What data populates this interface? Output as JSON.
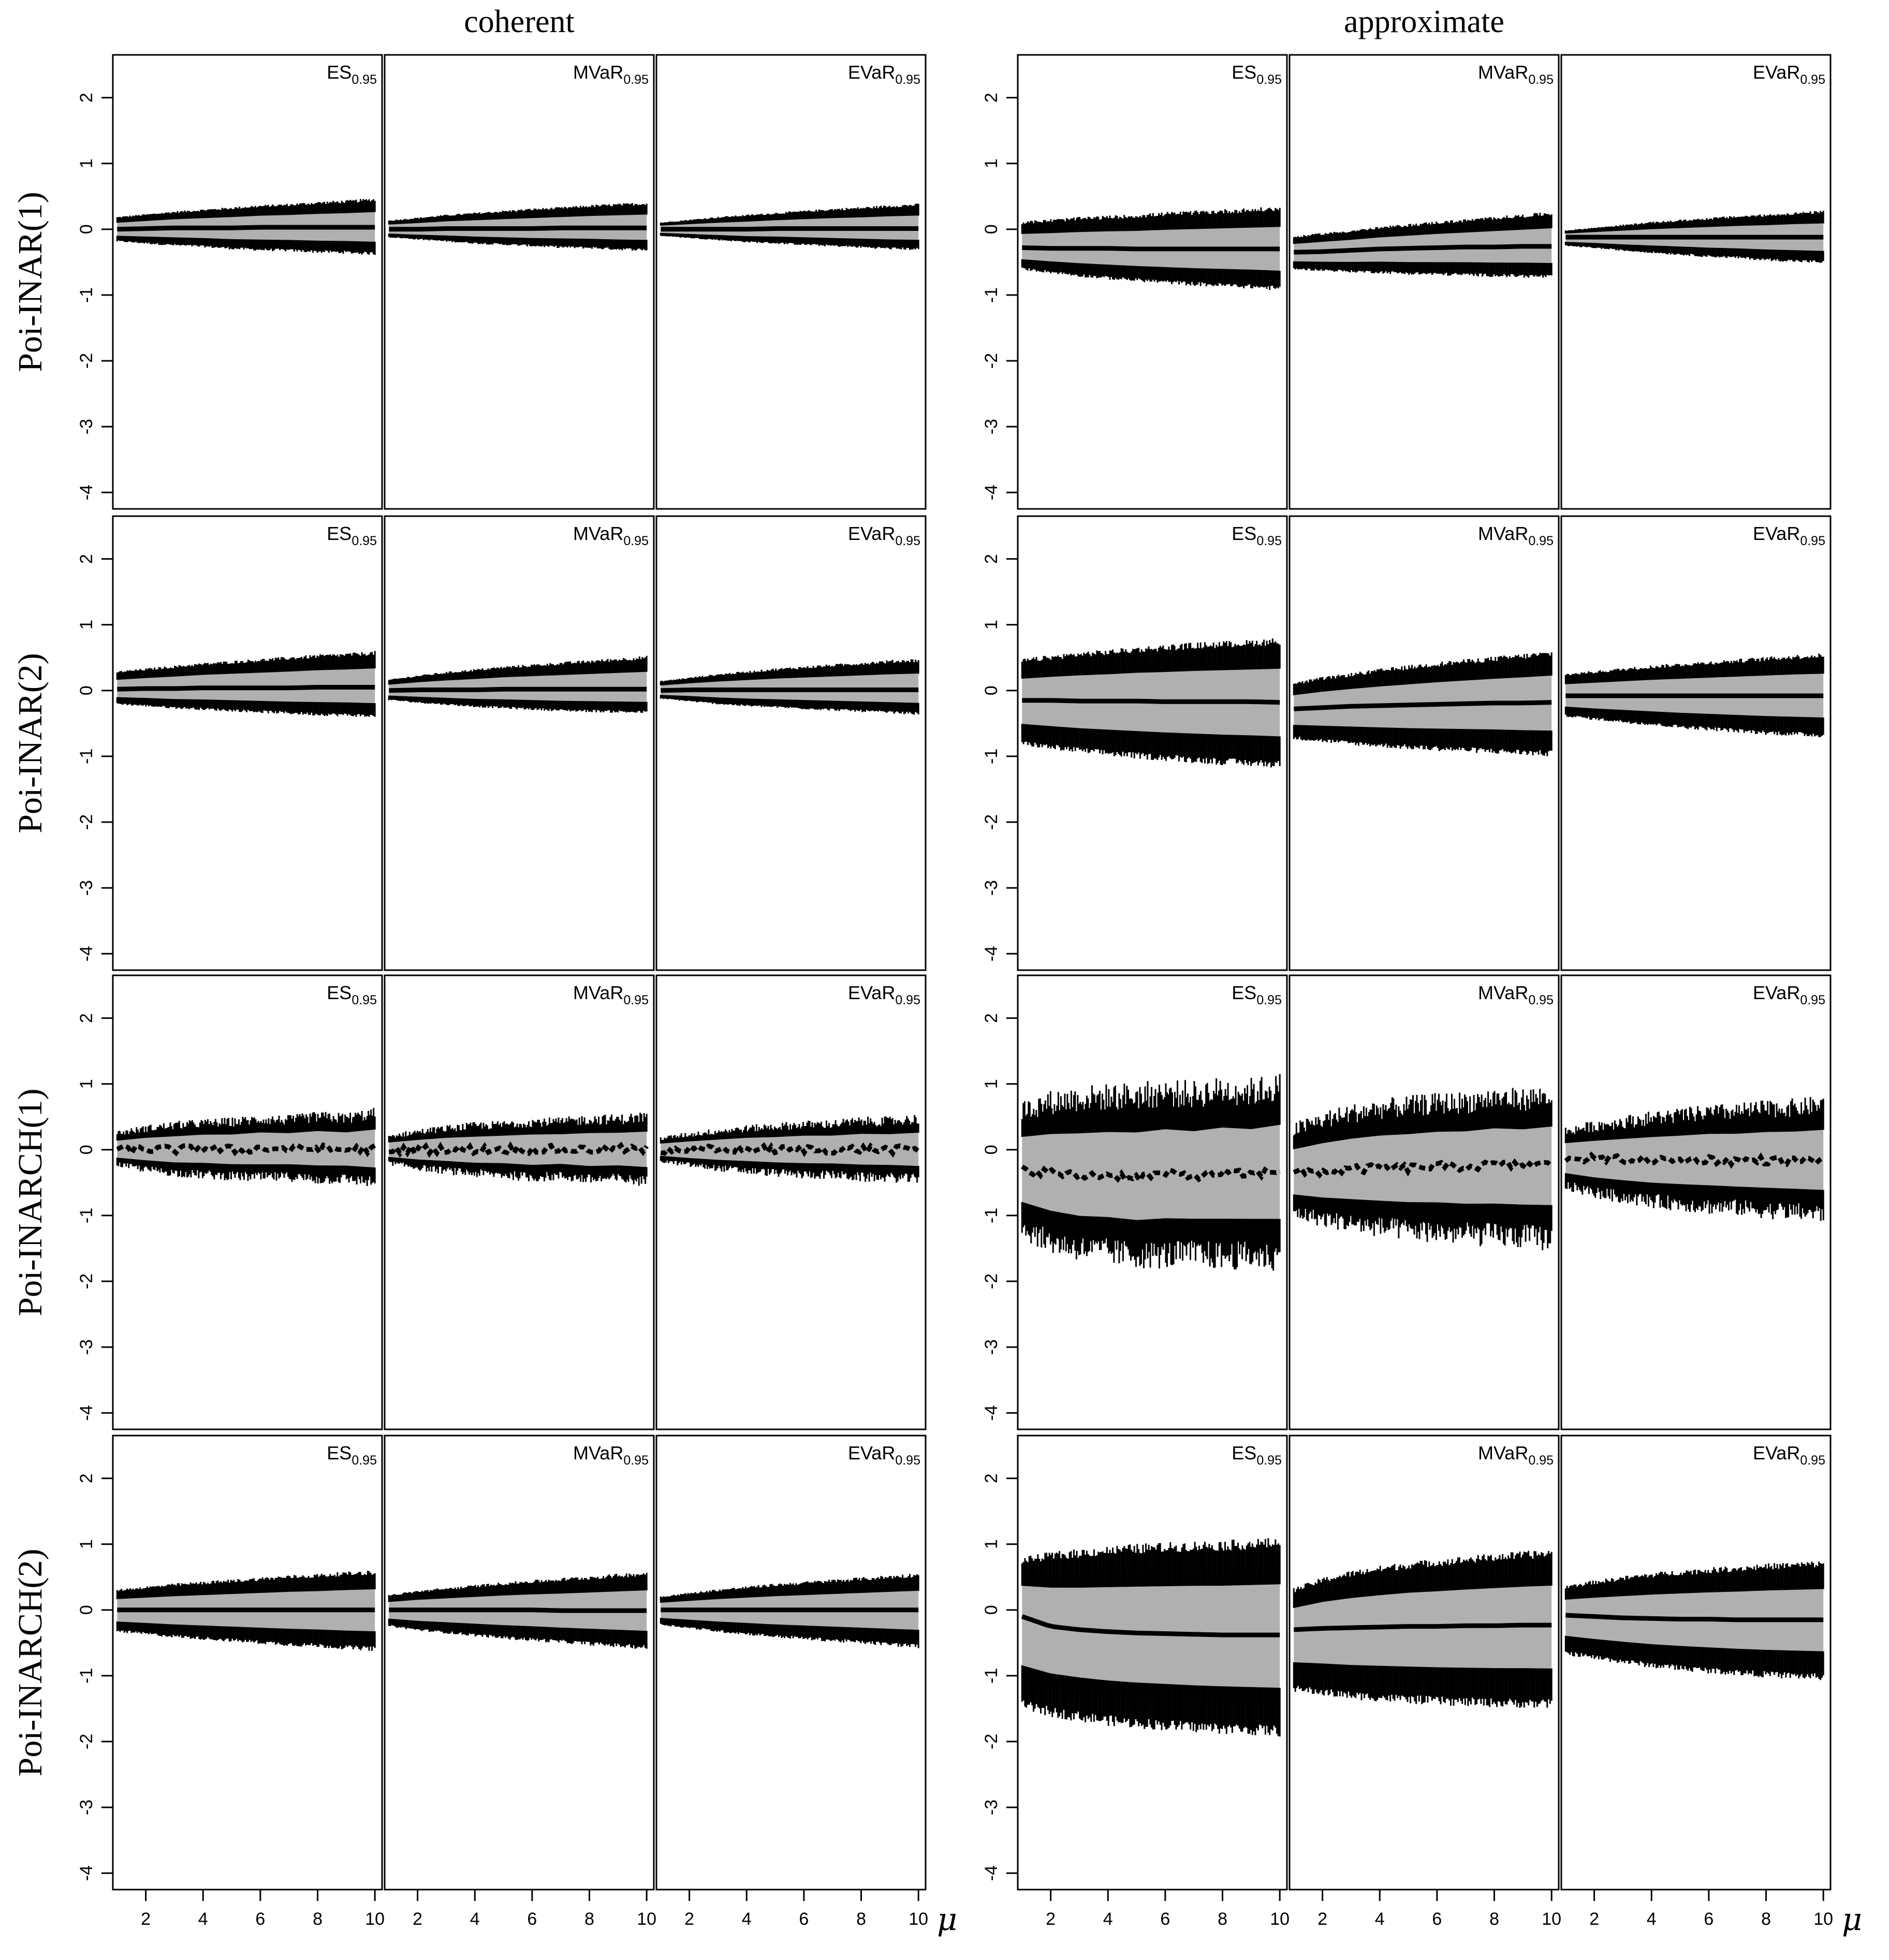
{
  "figure": {
    "column_groups": [
      "coherent",
      "approximate"
    ],
    "row_labels": [
      "Poi-INAR(1)",
      "Poi-INAR(2)",
      "Poi-INARCH(1)",
      "Poi-INARCH(2)"
    ],
    "x_axis_symbol": "μ",
    "colors": {
      "band": "#b0b0b0",
      "bars": "#000000",
      "line": "#000000",
      "frame": "#000000"
    }
  },
  "chart_data": {
    "type": "line",
    "description_of_marks": "per panel: vertical bars (interval) over a grey band, with a thick mean line",
    "xlim": [
      0.85,
      10.25
    ],
    "ylim": [
      -4.25,
      2.65
    ],
    "x_ticks": [
      2,
      4,
      6,
      8,
      10
    ],
    "y_ticks": [
      -4,
      -3,
      -2,
      -1,
      0,
      1,
      2
    ],
    "x_points": [
      1,
      2,
      3,
      4,
      5,
      6,
      7,
      8,
      9,
      10
    ],
    "panels": [
      {
        "group": "coherent",
        "row": "Poi-INAR(1)",
        "measure": "ES",
        "sub": "0.95",
        "center": [
          0,
          0.01,
          0.02,
          0.02,
          0.02,
          0.03,
          0.03,
          0.03,
          0.03,
          0.03
        ],
        "upper": [
          0.18,
          0.22,
          0.26,
          0.29,
          0.32,
          0.35,
          0.37,
          0.4,
          0.42,
          0.45
        ],
        "lower": [
          -0.18,
          -0.21,
          -0.24,
          -0.26,
          -0.29,
          -0.31,
          -0.32,
          -0.34,
          -0.35,
          -0.37
        ]
      },
      {
        "group": "coherent",
        "row": "Poi-INAR(1)",
        "measure": "MVaR",
        "sub": "0.95",
        "center": [
          0,
          0,
          0.01,
          0.01,
          0.01,
          0.01,
          0.02,
          0.02,
          0.02,
          0.02
        ],
        "upper": [
          0.13,
          0.17,
          0.21,
          0.24,
          0.27,
          0.3,
          0.32,
          0.35,
          0.37,
          0.39
        ],
        "lower": [
          -0.12,
          -0.15,
          -0.18,
          -0.21,
          -0.23,
          -0.25,
          -0.27,
          -0.28,
          -0.3,
          -0.31
        ]
      },
      {
        "group": "coherent",
        "row": "Poi-INAR(1)",
        "measure": "EVaR",
        "sub": "0.95",
        "center": [
          0,
          0,
          0,
          0,
          0.01,
          0.01,
          0.01,
          0.01,
          0.01,
          0.01
        ],
        "upper": [
          0.1,
          0.14,
          0.18,
          0.21,
          0.24,
          0.27,
          0.3,
          0.32,
          0.35,
          0.37
        ],
        "lower": [
          -0.1,
          -0.13,
          -0.16,
          -0.19,
          -0.21,
          -0.23,
          -0.25,
          -0.27,
          -0.29,
          -0.3
        ]
      },
      {
        "group": "coherent",
        "row": "Poi-INAR(2)",
        "measure": "ES",
        "sub": "0.95",
        "center": [
          0.02,
          0.03,
          0.03,
          0.04,
          0.04,
          0.04,
          0.04,
          0.05,
          0.05,
          0.05
        ],
        "upper": [
          0.28,
          0.32,
          0.36,
          0.4,
          0.43,
          0.46,
          0.49,
          0.52,
          0.54,
          0.57
        ],
        "lower": [
          -0.2,
          -0.23,
          -0.26,
          -0.28,
          -0.3,
          -0.32,
          -0.34,
          -0.36,
          -0.37,
          -0.39
        ]
      },
      {
        "group": "coherent",
        "row": "Poi-INAR(2)",
        "measure": "MVaR",
        "sub": "0.95",
        "center": [
          0,
          0.01,
          0.01,
          0.01,
          0.02,
          0.02,
          0.02,
          0.02,
          0.02,
          0.02
        ],
        "upper": [
          0.16,
          0.22,
          0.27,
          0.31,
          0.35,
          0.38,
          0.41,
          0.44,
          0.47,
          0.5
        ],
        "lower": [
          -0.14,
          -0.18,
          -0.21,
          -0.24,
          -0.26,
          -0.28,
          -0.3,
          -0.31,
          -0.32,
          -0.33
        ]
      },
      {
        "group": "coherent",
        "row": "Poi-INAR(2)",
        "measure": "EVaR",
        "sub": "0.95",
        "center": [
          0,
          0.01,
          0.01,
          0.01,
          0.01,
          0.01,
          0.01,
          0.01,
          0.01,
          0.01
        ],
        "upper": [
          0.14,
          0.19,
          0.24,
          0.28,
          0.32,
          0.35,
          0.38,
          0.41,
          0.44,
          0.46
        ],
        "lower": [
          -0.12,
          -0.16,
          -0.2,
          -0.23,
          -0.25,
          -0.27,
          -0.29,
          -0.31,
          -0.33,
          -0.35
        ]
      },
      {
        "group": "coherent",
        "row": "Poi-INARCH(1)",
        "measure": "ES",
        "sub": "0.95",
        "center": [
          0,
          0.01,
          0,
          0.02,
          0,
          0.02,
          0.01,
          0.02,
          0,
          0.01
        ],
        "upper": [
          0.25,
          0.32,
          0.37,
          0.4,
          0.42,
          0.46,
          0.45,
          0.5,
          0.48,
          0.55
        ],
        "lower": [
          -0.22,
          -0.3,
          -0.35,
          -0.38,
          -0.4,
          -0.42,
          -0.41,
          -0.45,
          -0.44,
          -0.5
        ]
      },
      {
        "group": "coherent",
        "row": "Poi-INARCH(1)",
        "measure": "MVaR",
        "sub": "0.95",
        "center": [
          0,
          0,
          0.01,
          0,
          0.01,
          0,
          0.01,
          0,
          0.01,
          0
        ],
        "upper": [
          0.2,
          0.27,
          0.32,
          0.36,
          0.38,
          0.42,
          0.42,
          0.46,
          0.46,
          0.5
        ],
        "lower": [
          -0.2,
          -0.27,
          -0.32,
          -0.36,
          -0.38,
          -0.42,
          -0.4,
          -0.45,
          -0.44,
          -0.48
        ]
      },
      {
        "group": "coherent",
        "row": "Poi-INARCH(1)",
        "measure": "EVaR",
        "sub": "0.95",
        "center": [
          0,
          0,
          0,
          0.01,
          0,
          0.01,
          0,
          0.01,
          0,
          0
        ],
        "upper": [
          0.17,
          0.23,
          0.28,
          0.32,
          0.35,
          0.38,
          0.39,
          0.43,
          0.43,
          0.47
        ],
        "lower": [
          -0.17,
          -0.23,
          -0.28,
          -0.32,
          -0.35,
          -0.38,
          -0.38,
          -0.42,
          -0.42,
          -0.45
        ]
      },
      {
        "group": "coherent",
        "row": "Poi-INARCH(2)",
        "measure": "ES",
        "sub": "0.95",
        "center": [
          0,
          0,
          0,
          0,
          0,
          0,
          0,
          0,
          0,
          0
        ],
        "upper": [
          0.3,
          0.34,
          0.38,
          0.41,
          0.44,
          0.47,
          0.5,
          0.52,
          0.55,
          0.57
        ],
        "lower": [
          -0.32,
          -0.36,
          -0.4,
          -0.43,
          -0.46,
          -0.49,
          -0.52,
          -0.54,
          -0.57,
          -0.59
        ]
      },
      {
        "group": "coherent",
        "row": "Poi-INARCH(2)",
        "measure": "MVaR",
        "sub": "0.95",
        "center": [
          0,
          0,
          0,
          0,
          0,
          0,
          -0.01,
          -0.01,
          -0.01,
          -0.01
        ],
        "upper": [
          0.22,
          0.28,
          0.32,
          0.36,
          0.4,
          0.43,
          0.46,
          0.49,
          0.52,
          0.55
        ],
        "lower": [
          -0.24,
          -0.3,
          -0.34,
          -0.38,
          -0.42,
          -0.45,
          -0.48,
          -0.51,
          -0.54,
          -0.57
        ]
      },
      {
        "group": "coherent",
        "row": "Poi-INARCH(2)",
        "measure": "EVaR",
        "sub": "0.95",
        "center": [
          0,
          0,
          0,
          0,
          0,
          0,
          0,
          0,
          0,
          0
        ],
        "upper": [
          0.2,
          0.25,
          0.3,
          0.34,
          0.38,
          0.41,
          0.44,
          0.47,
          0.5,
          0.53
        ],
        "lower": [
          -0.22,
          -0.27,
          -0.32,
          -0.36,
          -0.4,
          -0.43,
          -0.46,
          -0.49,
          -0.52,
          -0.55
        ]
      },
      {
        "group": "approximate",
        "row": "Poi-INAR(1)",
        "measure": "ES",
        "sub": "0.95",
        "center": [
          -0.28,
          -0.29,
          -0.29,
          -0.29,
          -0.3,
          -0.3,
          -0.3,
          -0.3,
          -0.3,
          -0.3
        ],
        "upper": [
          0.1,
          0.13,
          0.16,
          0.18,
          0.2,
          0.23,
          0.25,
          0.27,
          0.29,
          0.31
        ],
        "lower": [
          -0.6,
          -0.65,
          -0.7,
          -0.74,
          -0.77,
          -0.8,
          -0.83,
          -0.85,
          -0.87,
          -0.9
        ]
      },
      {
        "group": "approximate",
        "row": "Poi-INAR(1)",
        "measure": "MVaR",
        "sub": "0.95",
        "center": [
          -0.35,
          -0.34,
          -0.32,
          -0.3,
          -0.29,
          -0.28,
          -0.27,
          -0.27,
          -0.26,
          -0.26
        ],
        "upper": [
          -0.12,
          -0.07,
          -0.03,
          0.02,
          0.06,
          0.1,
          0.13,
          0.17,
          0.2,
          0.24
        ],
        "lower": [
          -0.6,
          -0.62,
          -0.64,
          -0.65,
          -0.67,
          -0.68,
          -0.69,
          -0.7,
          -0.71,
          -0.72
        ]
      },
      {
        "group": "approximate",
        "row": "Poi-INAR(1)",
        "measure": "EVaR",
        "sub": "0.95",
        "center": [
          -0.12,
          -0.12,
          -0.12,
          -0.12,
          -0.12,
          -0.12,
          -0.12,
          -0.12,
          -0.12,
          -0.12
        ],
        "upper": [
          -0.02,
          0.02,
          0.06,
          0.1,
          0.13,
          0.16,
          0.19,
          0.21,
          0.24,
          0.26
        ],
        "lower": [
          -0.25,
          -0.28,
          -0.32,
          -0.35,
          -0.38,
          -0.41,
          -0.43,
          -0.46,
          -0.48,
          -0.5
        ]
      },
      {
        "group": "approximate",
        "row": "Poi-INAR(2)",
        "measure": "ES",
        "sub": "0.95",
        "center": [
          -0.15,
          -0.15,
          -0.16,
          -0.16,
          -0.16,
          -0.17,
          -0.17,
          -0.17,
          -0.17,
          -0.18
        ],
        "upper": [
          0.45,
          0.5,
          0.55,
          0.58,
          0.62,
          0.65,
          0.68,
          0.7,
          0.72,
          0.75
        ],
        "lower": [
          -0.8,
          -0.86,
          -0.91,
          -0.95,
          -0.99,
          -1.02,
          -1.05,
          -1.08,
          -1.1,
          -1.12
        ]
      },
      {
        "group": "approximate",
        "row": "Poi-INAR(2)",
        "measure": "MVaR",
        "sub": "0.95",
        "center": [
          -0.28,
          -0.26,
          -0.24,
          -0.23,
          -0.22,
          -0.21,
          -0.2,
          -0.19,
          -0.19,
          -0.18
        ],
        "upper": [
          0.1,
          0.18,
          0.24,
          0.3,
          0.35,
          0.4,
          0.44,
          0.48,
          0.52,
          0.56
        ],
        "lower": [
          -0.72,
          -0.76,
          -0.8,
          -0.83,
          -0.86,
          -0.88,
          -0.9,
          -0.92,
          -0.94,
          -0.96
        ]
      },
      {
        "group": "approximate",
        "row": "Poi-INAR(2)",
        "measure": "EVaR",
        "sub": "0.95",
        "center": [
          -0.08,
          -0.08,
          -0.08,
          -0.08,
          -0.08,
          -0.08,
          -0.08,
          -0.08,
          -0.08,
          -0.08
        ],
        "upper": [
          0.24,
          0.28,
          0.32,
          0.36,
          0.39,
          0.42,
          0.45,
          0.48,
          0.51,
          0.53
        ],
        "lower": [
          -0.38,
          -0.43,
          -0.47,
          -0.51,
          -0.55,
          -0.58,
          -0.61,
          -0.64,
          -0.66,
          -0.68
        ]
      },
      {
        "group": "approximate",
        "row": "Poi-INARCH(1)",
        "measure": "ES",
        "sub": "0.95",
        "center": [
          -0.3,
          -0.35,
          -0.4,
          -0.38,
          -0.42,
          -0.36,
          -0.4,
          -0.35,
          -0.38,
          -0.32
        ],
        "upper": [
          0.6,
          0.72,
          0.78,
          0.8,
          0.82,
          0.86,
          0.84,
          0.9,
          0.88,
          0.95
        ],
        "lower": [
          -1.2,
          -1.4,
          -1.5,
          -1.55,
          -1.6,
          -1.6,
          -1.58,
          -1.62,
          -1.6,
          -1.65
        ]
      },
      {
        "group": "approximate",
        "row": "Poi-INARCH(1)",
        "measure": "MVaR",
        "sub": "0.95",
        "center": [
          -0.35,
          -0.33,
          -0.3,
          -0.28,
          -0.28,
          -0.25,
          -0.26,
          -0.23,
          -0.24,
          -0.22
        ],
        "upper": [
          0.3,
          0.45,
          0.55,
          0.62,
          0.66,
          0.7,
          0.72,
          0.78,
          0.76,
          0.82
        ],
        "lower": [
          -0.95,
          -1.05,
          -1.12,
          -1.18,
          -1.22,
          -1.25,
          -1.28,
          -1.3,
          -1.32,
          -1.35
        ]
      },
      {
        "group": "approximate",
        "row": "Poi-INARCH(1)",
        "measure": "EVaR",
        "sub": "0.95",
        "center": [
          -0.12,
          -0.14,
          -0.15,
          -0.16,
          -0.16,
          -0.15,
          -0.17,
          -0.16,
          -0.17,
          -0.16
        ],
        "upper": [
          0.28,
          0.36,
          0.42,
          0.48,
          0.52,
          0.56,
          0.58,
          0.62,
          0.64,
          0.68
        ],
        "lower": [
          -0.55,
          -0.65,
          -0.72,
          -0.78,
          -0.82,
          -0.86,
          -0.88,
          -0.92,
          -0.94,
          -0.98
        ]
      },
      {
        "group": "approximate",
        "row": "Poi-INARCH(2)",
        "measure": "ES",
        "sub": "0.95",
        "center": [
          -0.1,
          -0.25,
          -0.3,
          -0.33,
          -0.35,
          -0.36,
          -0.37,
          -0.38,
          -0.38,
          -0.38
        ],
        "upper": [
          0.75,
          0.82,
          0.86,
          0.9,
          0.93,
          0.95,
          0.97,
          0.98,
          1,
          1.02
        ],
        "lower": [
          -1.45,
          -1.55,
          -1.62,
          -1.68,
          -1.72,
          -1.75,
          -1.78,
          -1.8,
          -1.82,
          -1.84
        ]
      },
      {
        "group": "approximate",
        "row": "Poi-INARCH(2)",
        "measure": "MVaR",
        "sub": "0.95",
        "center": [
          -0.3,
          -0.28,
          -0.27,
          -0.26,
          -0.25,
          -0.25,
          -0.24,
          -0.24,
          -0.23,
          -0.23
        ],
        "upper": [
          0.3,
          0.45,
          0.55,
          0.62,
          0.68,
          0.72,
          0.76,
          0.8,
          0.83,
          0.86
        ],
        "lower": [
          -1.2,
          -1.25,
          -1.3,
          -1.33,
          -1.36,
          -1.38,
          -1.4,
          -1.41,
          -1.42,
          -1.43
        ]
      },
      {
        "group": "approximate",
        "row": "Poi-INARCH(2)",
        "measure": "EVaR",
        "sub": "0.95",
        "center": [
          -0.08,
          -0.1,
          -0.12,
          -0.13,
          -0.14,
          -0.14,
          -0.15,
          -0.15,
          -0.15,
          -0.15
        ],
        "upper": [
          0.35,
          0.42,
          0.48,
          0.53,
          0.57,
          0.6,
          0.63,
          0.66,
          0.68,
          0.7
        ],
        "lower": [
          -0.65,
          -0.72,
          -0.78,
          -0.84,
          -0.88,
          -0.92,
          -0.95,
          -0.98,
          -1,
          -1.02
        ]
      }
    ]
  }
}
